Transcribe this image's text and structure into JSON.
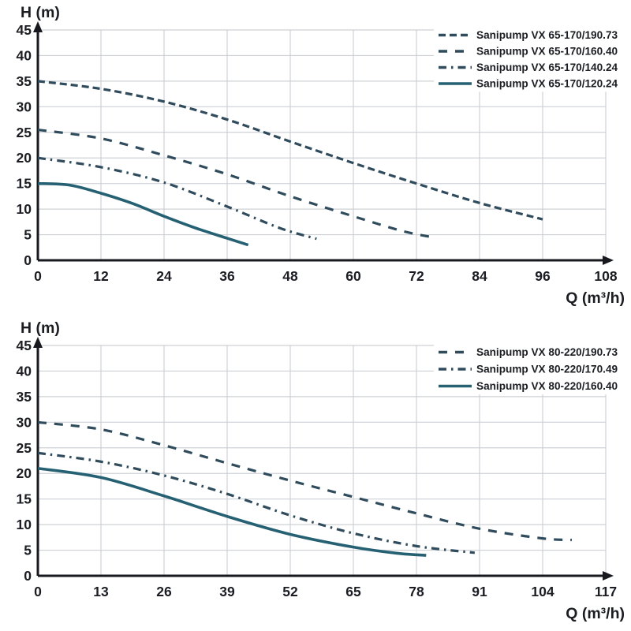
{
  "page": {
    "background": "#ffffff"
  },
  "colors": {
    "grid": "#cdd0d4",
    "axis": "#17191e",
    "text": "#1b1d23",
    "legend_text": "#1b1d23",
    "curve_dashed": "#2f4b5c",
    "curve_solid": "#266073"
  },
  "chart_data": [
    {
      "type": "line",
      "title": "",
      "ylabel": "H (m)",
      "xlabel": "Q (m³/h)",
      "xlim": [
        0,
        108
      ],
      "ylim": [
        0,
        45
      ],
      "xticks": [
        0,
        12,
        24,
        36,
        48,
        60,
        72,
        84,
        96,
        108
      ],
      "yticks": [
        0,
        5,
        10,
        15,
        20,
        25,
        30,
        35,
        40,
        45
      ],
      "grid": true,
      "legend_position": "top-right",
      "series": [
        {
          "name": "Sanipump VX 65-170/190.73",
          "style": "dashed-short",
          "color": "#2f4b5c",
          "points": [
            [
              0,
              35
            ],
            [
              12,
              33.5
            ],
            [
              24,
              31
            ],
            [
              36,
              27.5
            ],
            [
              48,
              23.2
            ],
            [
              60,
              19
            ],
            [
              72,
              15
            ],
            [
              84,
              11.2
            ],
            [
              96,
              8
            ]
          ]
        },
        {
          "name": "Sanipump VX 65-170/160.40",
          "style": "dashed-long",
          "color": "#2f4b5c",
          "points": [
            [
              0,
              25.5
            ],
            [
              12,
              23.8
            ],
            [
              24,
              20.5
            ],
            [
              36,
              16.8
            ],
            [
              48,
              12.5
            ],
            [
              60,
              8.6
            ],
            [
              69,
              5.8
            ],
            [
              75,
              4.5
            ]
          ]
        },
        {
          "name": "Sanipump VX 65-170/140.24",
          "style": "dash-dot",
          "color": "#2f4b5c",
          "points": [
            [
              0,
              20
            ],
            [
              12,
              18.2
            ],
            [
              24,
              15.2
            ],
            [
              36,
              10.5
            ],
            [
              46,
              6.3
            ],
            [
              53,
              4.2
            ]
          ]
        },
        {
          "name": "Sanipump VX 65-170/120.24",
          "style": "solid",
          "color": "#266073",
          "points": [
            [
              0,
              15
            ],
            [
              6,
              14.7
            ],
            [
              12,
              13.1
            ],
            [
              18,
              11.1
            ],
            [
              24,
              8.6
            ],
            [
              30,
              6.3
            ],
            [
              36,
              4.3
            ],
            [
              40,
              3
            ]
          ]
        }
      ]
    },
    {
      "type": "line",
      "title": "",
      "ylabel": "H (m)",
      "xlabel": "Q (m³/h)",
      "xlim": [
        0,
        117
      ],
      "ylim": [
        0,
        45
      ],
      "xticks": [
        0,
        13,
        26,
        39,
        52,
        65,
        78,
        91,
        104,
        117
      ],
      "yticks": [
        0,
        5,
        10,
        15,
        20,
        25,
        30,
        35,
        40,
        45
      ],
      "grid": true,
      "legend_position": "top-right",
      "series": [
        {
          "name": "Sanipump VX 80-220/190.73",
          "style": "dashed-long",
          "color": "#2f4b5c",
          "points": [
            [
              0,
              30
            ],
            [
              13,
              28.6
            ],
            [
              26,
              25.5
            ],
            [
              39,
              22
            ],
            [
              52,
              18.6
            ],
            [
              65,
              15.4
            ],
            [
              78,
              12.2
            ],
            [
              91,
              9.2
            ],
            [
              104,
              7.3
            ],
            [
              110,
              7
            ]
          ]
        },
        {
          "name": "Sanipump VX 80-220/170.49",
          "style": "dash-dot",
          "color": "#2f4b5c",
          "points": [
            [
              0,
              24
            ],
            [
              13,
              22.3
            ],
            [
              26,
              19.6
            ],
            [
              39,
              16
            ],
            [
              52,
              11.8
            ],
            [
              65,
              8.3
            ],
            [
              78,
              5.8
            ],
            [
              90,
              4.5
            ]
          ]
        },
        {
          "name": "Sanipump VX 80-220/160.40",
          "style": "solid",
          "color": "#266073",
          "points": [
            [
              0,
              21
            ],
            [
              13,
              19.2
            ],
            [
              26,
              15.6
            ],
            [
              39,
              11.6
            ],
            [
              52,
              8.1
            ],
            [
              65,
              5.6
            ],
            [
              74,
              4.4
            ],
            [
              80,
              4
            ]
          ]
        }
      ]
    }
  ]
}
